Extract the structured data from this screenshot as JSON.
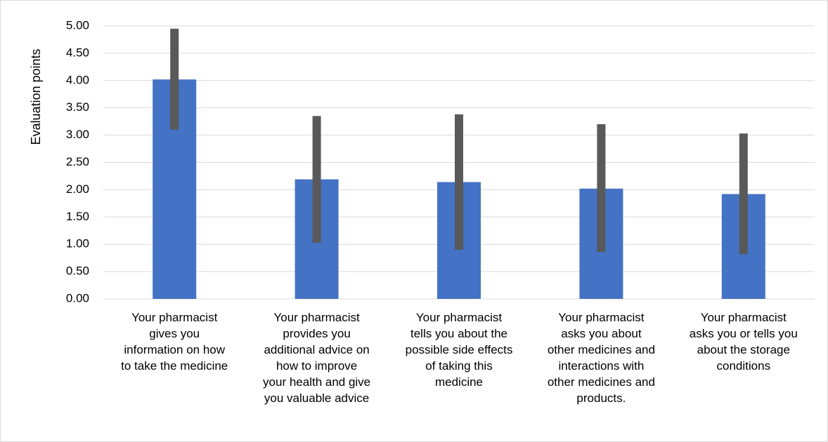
{
  "chart_data": {
    "type": "bar",
    "title": "",
    "xlabel": "",
    "ylabel": "Evaluation points",
    "ylim": [
      0,
      5
    ],
    "ytick_step": 0.5,
    "ytick_labels": [
      "0.00",
      "0.50",
      "1.00",
      "1.50",
      "2.00",
      "2.50",
      "3.00",
      "3.50",
      "4.00",
      "4.50",
      "5.00"
    ],
    "grid": true,
    "legend": "none",
    "bar_color": "#4472C4",
    "error_bar_color": "#595959",
    "categories": [
      [
        "Your pharmacist",
        "gives you",
        "information on how",
        "to take the medicine"
      ],
      [
        "Your pharmacist",
        "provides you",
        "additional advice on",
        "how to improve",
        "your health and give",
        "you valuable advice"
      ],
      [
        "Your pharmacist",
        "tells you about the",
        "possible side effects",
        "of taking this",
        "medicine"
      ],
      [
        "Your pharmacist",
        "asks you about",
        "other medicines and",
        "interactions with",
        "other medicines and",
        "products."
      ],
      [
        "Your pharmacist",
        "asks you or tells you",
        "about the storage",
        "conditions"
      ]
    ],
    "values": [
      4.02,
      2.19,
      2.14,
      2.02,
      1.92
    ],
    "error_low": [
      3.1,
      1.03,
      0.9,
      0.86,
      0.82
    ],
    "error_high": [
      4.95,
      3.35,
      3.38,
      3.2,
      3.03
    ]
  }
}
